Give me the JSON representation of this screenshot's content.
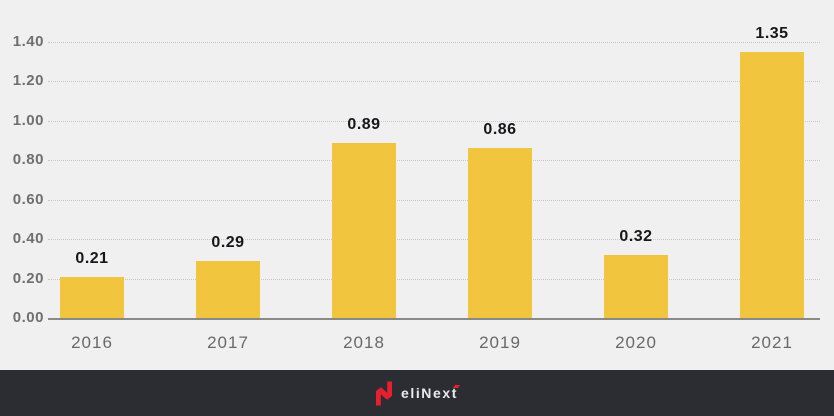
{
  "chart_data": {
    "type": "bar",
    "categories": [
      "2016",
      "2017",
      "2018",
      "2019",
      "2020",
      "2021"
    ],
    "values": [
      0.21,
      0.29,
      0.89,
      0.86,
      0.32,
      1.35
    ],
    "value_labels": [
      "0.21",
      "0.29",
      "0.89",
      "0.86",
      "0.32",
      "1.35"
    ],
    "title": "",
    "xlabel": "",
    "ylabel": "",
    "ylim": [
      0,
      1.4
    ],
    "ytick_labels": [
      "0.00",
      "0.20",
      "0.40",
      "0.60",
      "0.80",
      "1.00",
      "1.20",
      "1.40"
    ],
    "grid": "horizontal-dotted",
    "legend": "none",
    "bar_color": "#F2C53E",
    "value_label_color": "#17171A",
    "axis_text_color": "#6F6F6F",
    "gridline_color": "#C8C8C8",
    "background_color": "#F0F0F0"
  },
  "footer": {
    "background_color": "#2B2D33",
    "logo": {
      "mark_color": "#E8202E",
      "text_main": "eliNex",
      "text_last": "t",
      "full_text": "elinext"
    }
  }
}
